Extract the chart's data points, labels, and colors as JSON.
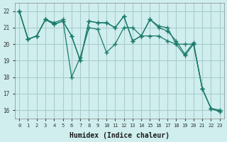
{
  "xlabel": "Humidex (Indice chaleur)",
  "ylabel": "",
  "bg_color": "#d0eeee",
  "grid_color": "#aacccc",
  "line_color": "#1a7a6a",
  "xlim": [
    -0.5,
    23.5
  ],
  "ylim": [
    15.5,
    22.5
  ],
  "xticks": [
    0,
    1,
    2,
    3,
    4,
    5,
    6,
    7,
    8,
    9,
    10,
    11,
    12,
    13,
    14,
    15,
    16,
    17,
    18,
    19,
    20,
    21,
    22,
    23
  ],
  "yticks": [
    16,
    17,
    18,
    19,
    20,
    21,
    22
  ],
  "lines": [
    [
      22,
      20.3,
      20.5,
      21.5,
      21.3,
      21.5,
      18.0,
      19.2,
      21.0,
      20.9,
      19.5,
      20.0,
      21.0,
      21.0,
      20.5,
      21.5,
      21.1,
      21.0,
      20.0,
      19.3,
      20.0,
      17.3,
      16.1,
      16.0
    ],
    [
      22,
      20.3,
      20.5,
      21.5,
      21.2,
      21.4,
      20.5,
      19.0,
      21.4,
      21.3,
      21.3,
      21.0,
      21.7,
      20.2,
      20.5,
      20.5,
      20.5,
      20.2,
      20.0,
      20.0,
      20.0,
      17.3,
      16.1,
      15.9
    ],
    [
      22,
      20.3,
      20.5,
      21.5,
      21.2,
      21.4,
      20.5,
      19.0,
      21.4,
      21.3,
      21.3,
      21.0,
      21.7,
      20.2,
      20.5,
      21.5,
      21.0,
      20.8,
      20.2,
      19.4,
      20.1,
      17.3,
      16.1,
      15.9
    ]
  ]
}
